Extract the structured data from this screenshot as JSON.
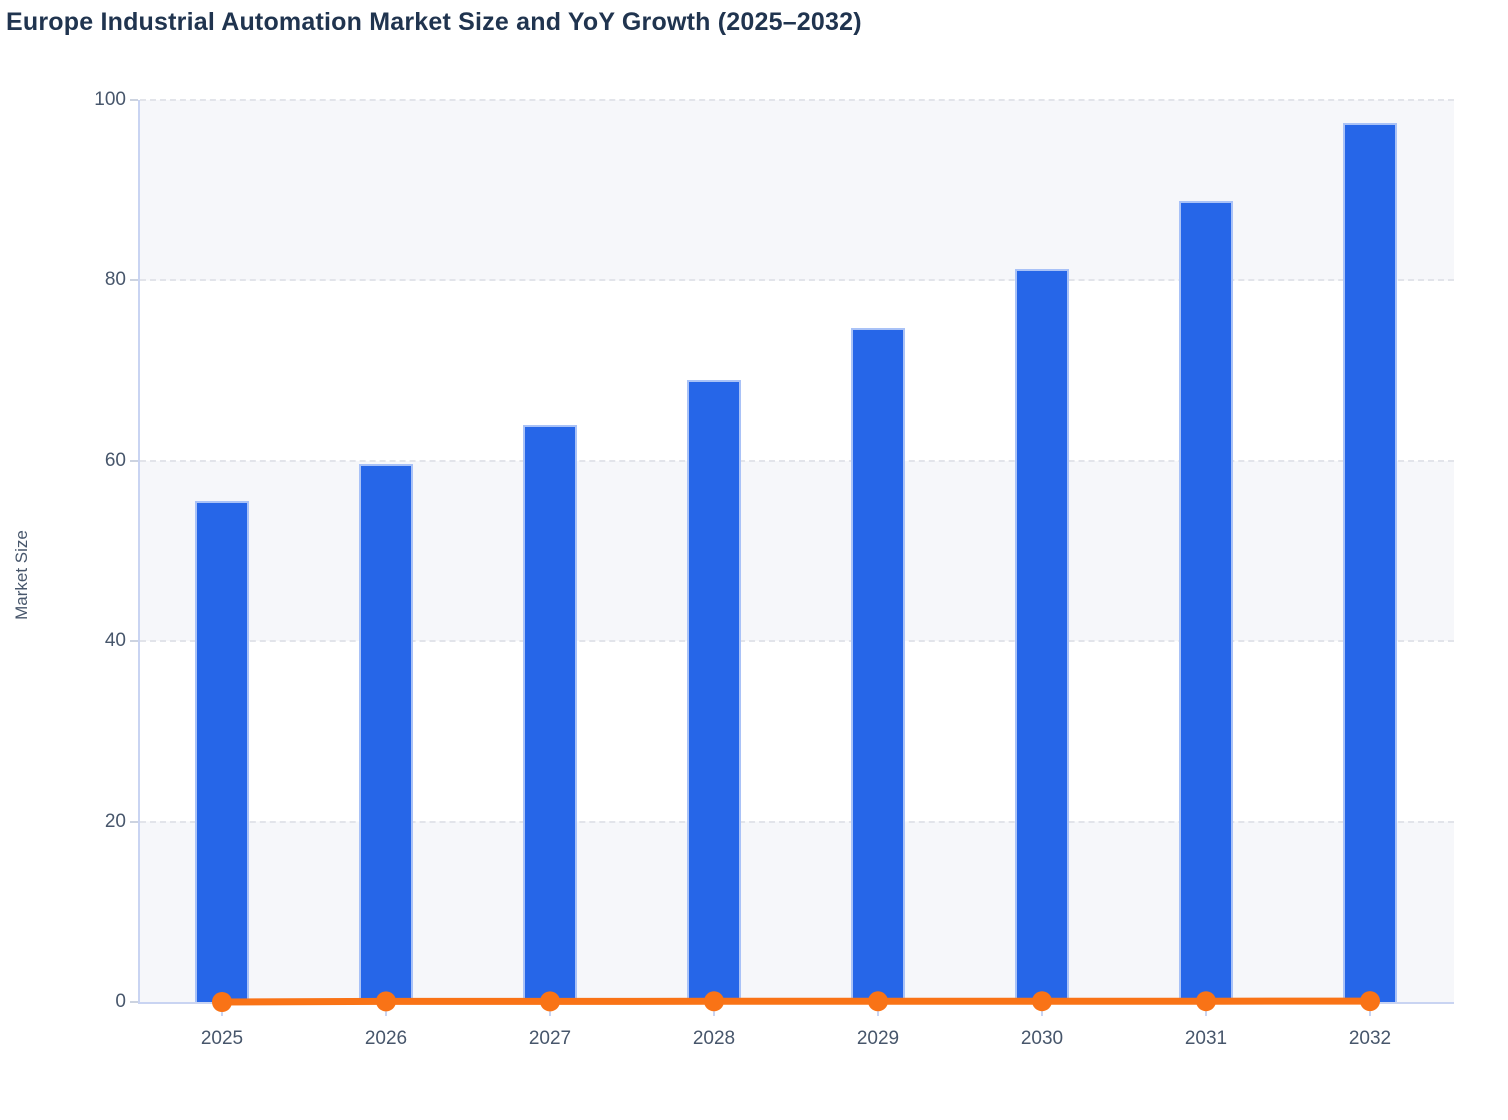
{
  "title": "Europe Industrial Automation Market Size and YoY Growth (2025–2032)",
  "y_axis": {
    "label": "Market Size",
    "ticks": [
      0,
      20,
      40,
      60,
      80,
      100
    ]
  },
  "chart_data": {
    "type": "bar",
    "title": "Europe Industrial Automation Market Size and YoY Growth (2025–2032)",
    "categories": [
      "2025",
      "2026",
      "2027",
      "2028",
      "2029",
      "2030",
      "2031",
      "2032"
    ],
    "series": [
      {
        "name": "Market Size",
        "type": "bar",
        "color": "#2666e8",
        "values": [
          55.6,
          59.6,
          64.0,
          69.0,
          74.7,
          81.3,
          88.8,
          97.5
        ]
      },
      {
        "name": "YoY Growth",
        "type": "line",
        "color": "#f97316",
        "values": [
          0,
          0.07,
          0.07,
          0.08,
          0.08,
          0.09,
          0.09,
          0.1
        ]
      }
    ],
    "xlabel": "",
    "ylabel": "Market Size",
    "ylim": [
      0,
      100
    ],
    "grid": "dashed-horizontal",
    "legend": "none",
    "plot_bands": "alternating gray/white every 20 units"
  },
  "colors": {
    "bar_fill": "#2666e8",
    "bar_border": "#a9c2f7",
    "line": "#f97316",
    "axis": "#c9d4f2",
    "gridline": "#e2e4ea",
    "band": "#f6f7fa",
    "title_text": "#20344f",
    "label_text": "#47566b"
  }
}
